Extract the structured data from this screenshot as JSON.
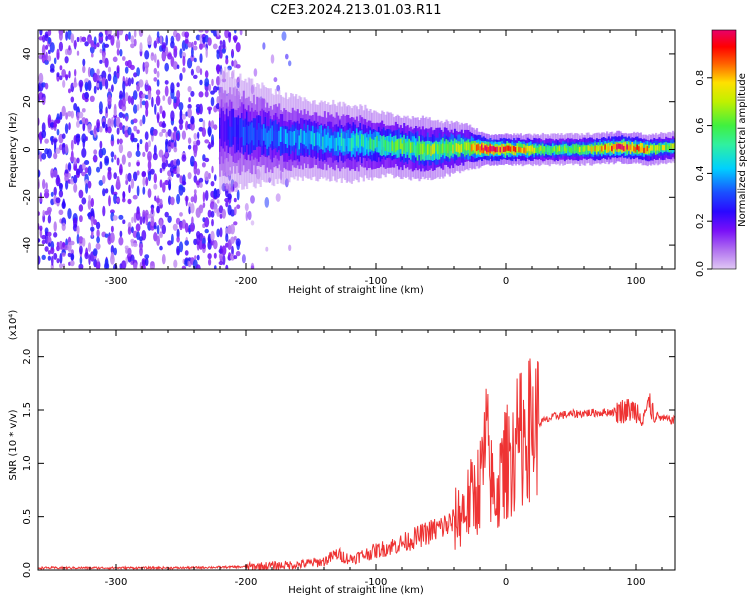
{
  "title": "C2E3.2024.213.01.03.R11",
  "colors": {
    "snr_line": "#ee3333",
    "axis": "#000000",
    "colormap": [
      "#e0c8f4",
      "#b070f0",
      "#7a10f8",
      "#2a08ff",
      "#1a50ff",
      "#00d0ff",
      "#30f0a0",
      "#40f040",
      "#c0f000",
      "#ffe000",
      "#ff6000",
      "#ff0000",
      "#e8006a"
    ]
  },
  "chart_data": [
    {
      "type": "heatmap",
      "xlabel": "Height of straight line (km)",
      "ylabel": "Frequency (Hz)",
      "xlim": [
        -360,
        130
      ],
      "ylim": [
        -50,
        50
      ],
      "x_ticks": [
        -300,
        -200,
        -100,
        0,
        100
      ],
      "x_tick_labels": [
        "-300",
        "-200",
        "-100",
        "0",
        "100"
      ],
      "y_ticks": [
        -40,
        -20,
        0,
        20,
        40
      ],
      "y_tick_labels": [
        "-40",
        "-20",
        "0",
        "20",
        "40"
      ],
      "grid": false,
      "colorbar": {
        "label": "Normalized spectral amplitude",
        "range": [
          0,
          1
        ],
        "ticks": [
          0.0,
          0.2,
          0.4,
          0.6,
          0.8
        ],
        "tick_labels": [
          "0.0",
          "0.2",
          "0.4",
          "0.6",
          "0.8"
        ]
      },
      "ridge": [
        {
          "height": -220,
          "center_hz": 8,
          "halfwidth_hz": 8,
          "amplitude": 0.22
        },
        {
          "height": -200,
          "center_hz": 7,
          "halfwidth_hz": 7,
          "amplitude": 0.32
        },
        {
          "height": -180,
          "center_hz": 5,
          "halfwidth_hz": 6,
          "amplitude": 0.35
        },
        {
          "height": -150,
          "center_hz": 4,
          "halfwidth_hz": 5,
          "amplitude": 0.42
        },
        {
          "height": -120,
          "center_hz": 3,
          "halfwidth_hz": 5,
          "amplitude": 0.45
        },
        {
          "height": -90,
          "center_hz": 2,
          "halfwidth_hz": 4,
          "amplitude": 0.55
        },
        {
          "height": -60,
          "center_hz": 0,
          "halfwidth_hz": 4,
          "amplitude": 0.6
        },
        {
          "height": -30,
          "center_hz": 1,
          "halfwidth_hz": 3,
          "amplitude": 0.65
        },
        {
          "height": -15,
          "center_hz": 0,
          "halfwidth_hz": 2,
          "amplitude": 0.95
        },
        {
          "height": 0,
          "center_hz": 0,
          "halfwidth_hz": 2,
          "amplitude": 0.9
        },
        {
          "height": 30,
          "center_hz": 0,
          "halfwidth_hz": 2,
          "amplitude": 0.6
        },
        {
          "height": 60,
          "center_hz": 0,
          "halfwidth_hz": 2,
          "amplitude": 0.65
        },
        {
          "height": 90,
          "center_hz": 1,
          "halfwidth_hz": 2,
          "amplitude": 0.9
        },
        {
          "height": 110,
          "center_hz": 0,
          "halfwidth_hz": 2,
          "amplitude": 0.75
        },
        {
          "height": 130,
          "center_hz": 1,
          "halfwidth_hz": 2,
          "amplitude": 0.6
        }
      ],
      "noise_region": {
        "x_from": -360,
        "x_to": -165,
        "dense_until": -205,
        "amplitude": 0.25
      }
    },
    {
      "type": "line",
      "xlabel": "Height of straight line (km)",
      "ylabel": "SNR (10 * v/v)",
      "y_scale_label": "(x10⁴)",
      "xlim": [
        -360,
        130
      ],
      "ylim": [
        0,
        2.25
      ],
      "x_ticks": [
        -300,
        -200,
        -100,
        0,
        100
      ],
      "x_tick_labels": [
        "-300",
        "-200",
        "-100",
        "0",
        "100"
      ],
      "y_ticks": [
        0.0,
        0.5,
        1.0,
        1.5,
        2.0
      ],
      "y_tick_labels": [
        "0.0",
        "0.5",
        "1.0",
        "1.5",
        "2.0"
      ],
      "grid": false,
      "series": [
        {
          "x": [
            -360,
            -300,
            -250,
            -200,
            -180,
            -160,
            -140,
            -130,
            -120,
            -100,
            -80,
            -60,
            -40,
            -30,
            -20,
            -15,
            -10,
            -5,
            0,
            5,
            10,
            15,
            20,
            30,
            40,
            60,
            80,
            95,
            100,
            105,
            110,
            115,
            120,
            130
          ],
          "y": [
            0.02,
            0.02,
            0.02,
            0.03,
            0.04,
            0.05,
            0.08,
            0.15,
            0.1,
            0.18,
            0.25,
            0.35,
            0.45,
            0.6,
            0.8,
            1.2,
            0.7,
            0.8,
            1.0,
            1.1,
            1.2,
            1.3,
            1.35,
            1.4,
            1.45,
            1.47,
            1.48,
            1.5,
            1.5,
            1.45,
            1.55,
            1.45,
            1.42,
            1.4
          ]
        }
      ]
    }
  ]
}
